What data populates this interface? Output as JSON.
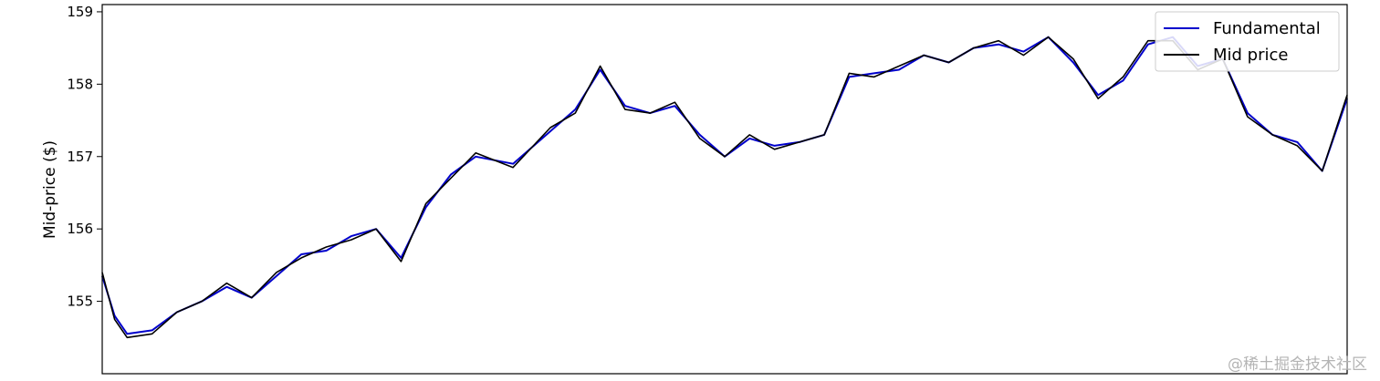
{
  "chart_data": {
    "type": "line",
    "xlabel": "",
    "ylabel": "Mid-price ($)",
    "ylim": [
      154.0,
      159.1
    ],
    "yticks": [
      155,
      156,
      157,
      158,
      159
    ],
    "grid": false,
    "legend_position": "top-right",
    "x": [
      0,
      0.01,
      0.02,
      0.04,
      0.06,
      0.08,
      0.1,
      0.12,
      0.14,
      0.16,
      0.18,
      0.2,
      0.22,
      0.24,
      0.26,
      0.28,
      0.3,
      0.33,
      0.36,
      0.38,
      0.4,
      0.42,
      0.44,
      0.46,
      0.48,
      0.5,
      0.52,
      0.54,
      0.56,
      0.58,
      0.6,
      0.62,
      0.64,
      0.66,
      0.68,
      0.7,
      0.72,
      0.74,
      0.76,
      0.78,
      0.8,
      0.82,
      0.84,
      0.86,
      0.88,
      0.9,
      0.92,
      0.94,
      0.96,
      0.98,
      1.0
    ],
    "series": [
      {
        "name": "Fundamental",
        "color": "#0000cc",
        "values": [
          155.35,
          154.8,
          154.55,
          154.6,
          154.85,
          155.0,
          155.2,
          155.05,
          155.35,
          155.65,
          155.7,
          155.9,
          156.0,
          155.6,
          156.3,
          156.75,
          157.0,
          156.9,
          157.35,
          157.65,
          158.2,
          157.7,
          157.6,
          157.7,
          157.3,
          157.0,
          157.25,
          157.15,
          157.2,
          157.3,
          158.1,
          158.15,
          158.2,
          158.4,
          158.3,
          158.5,
          158.55,
          158.45,
          158.65,
          158.3,
          157.85,
          158.05,
          158.55,
          158.65,
          158.25,
          158.35,
          157.6,
          157.3,
          157.2,
          156.8,
          157.8
        ]
      },
      {
        "name": "Mid price",
        "color": "#000000",
        "values": [
          155.4,
          154.75,
          154.5,
          154.55,
          154.85,
          155.0,
          155.25,
          155.05,
          155.4,
          155.6,
          155.75,
          155.85,
          156.0,
          155.55,
          156.35,
          156.7,
          157.05,
          156.85,
          157.4,
          157.6,
          158.25,
          157.65,
          157.6,
          157.75,
          157.25,
          157.0,
          157.3,
          157.1,
          157.2,
          157.3,
          158.15,
          158.1,
          158.25,
          158.4,
          158.3,
          158.5,
          158.6,
          158.4,
          158.65,
          158.35,
          157.8,
          158.1,
          158.6,
          158.6,
          158.2,
          158.35,
          157.55,
          157.3,
          157.15,
          156.8,
          157.85
        ]
      }
    ]
  },
  "watermark": "@稀土掘金技术社区"
}
